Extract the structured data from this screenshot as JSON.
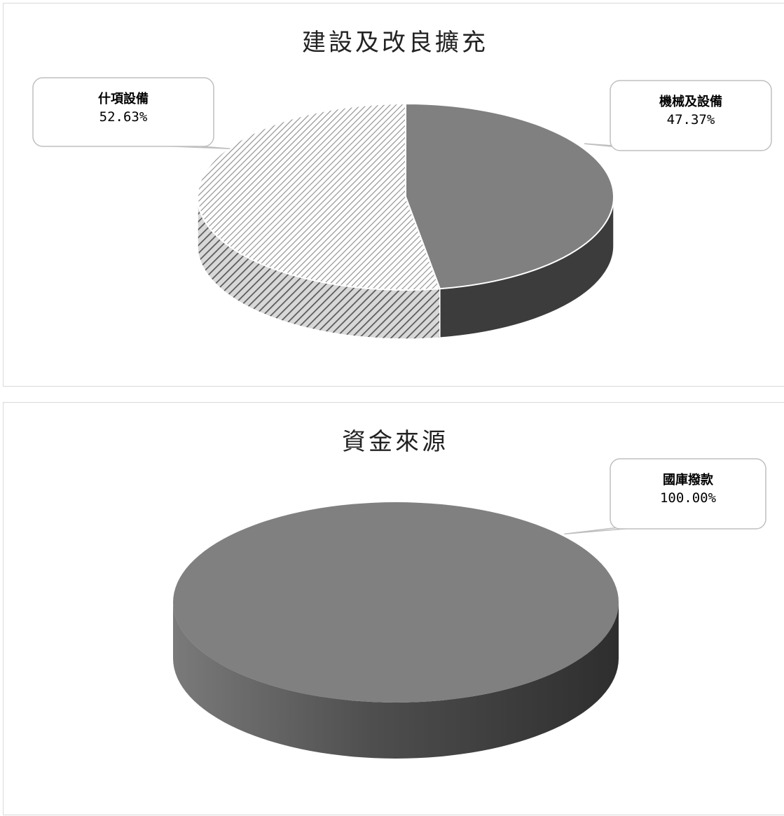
{
  "charts": [
    {
      "title": "建設及改良擴充",
      "chart_data": {
        "type": "pie",
        "title": "建設及改良擴充",
        "slices": [
          {
            "label": "機械及設備",
            "value": 47.37,
            "value_label": "47.37%"
          },
          {
            "label": "什項設備",
            "value": 52.63,
            "value_label": "52.63%"
          }
        ]
      }
    },
    {
      "title": "資金來源",
      "chart_data": {
        "type": "pie",
        "title": "資金來源",
        "slices": [
          {
            "label": "國庫撥款",
            "value": 100.0,
            "value_label": "100.00%"
          }
        ]
      }
    }
  ],
  "colors": {
    "solid_top": "#808080",
    "solid_side": "#3c3c3c",
    "hatch_stroke": "#8c8c8c",
    "hatch_side": "#5a5a5a"
  }
}
